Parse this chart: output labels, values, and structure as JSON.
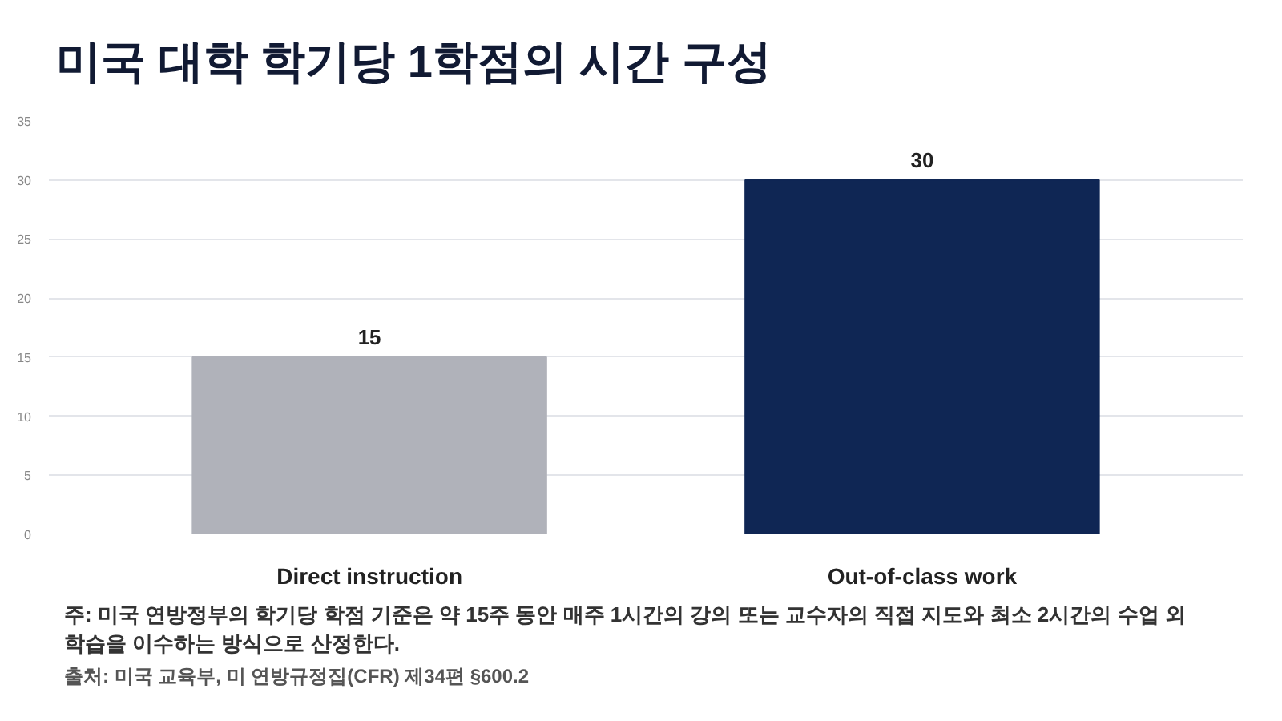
{
  "chart_data": {
    "type": "bar",
    "title": "미국 대학 학기당 1학점의 시간 구성",
    "categories": [
      "Direct instruction",
      "Out-of-class work"
    ],
    "values": [
      15,
      30
    ],
    "colors": [
      "#b0b2ba",
      "#0f2654"
    ],
    "ylim": [
      0,
      35
    ],
    "yticks": [
      0,
      5,
      10,
      15,
      20,
      25,
      30,
      35
    ],
    "grid": "y",
    "data_labels": true,
    "annotations": [
      "주: 미국 연방정부의 학기당 학점 기준은 약 15주 동안 매주 1시간의 강의 또는 교수자의 직접 지도와 최소 2시간의 수업 외 학습을 이수하는 방식으로 산정한다.",
      "출처: 미국 교육부, 미 연방규정집(CFR) 제34편 §600.2"
    ]
  }
}
